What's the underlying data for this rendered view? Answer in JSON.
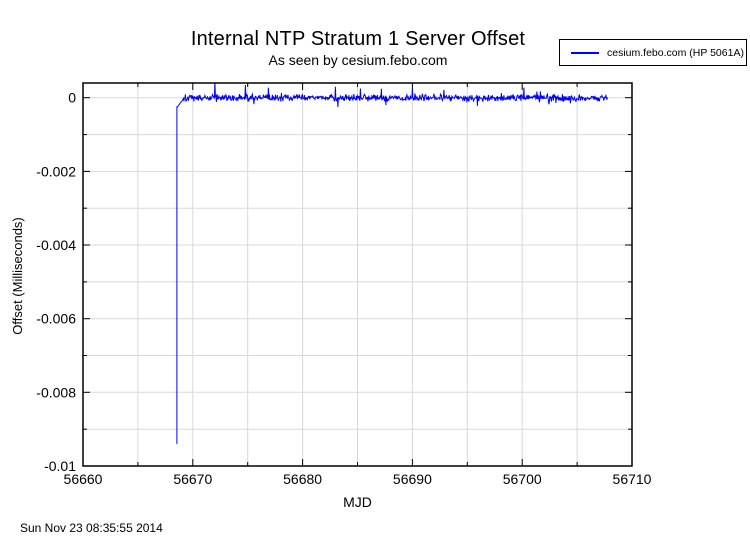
{
  "header": {
    "title": "Internal NTP Stratum 1 Server Offset",
    "subtitle": "As seen by cesium.febo.com"
  },
  "legend": {
    "entries": [
      {
        "label": "cesium.febo.com (HP 5061A)",
        "color": "#0000ff"
      }
    ]
  },
  "footer": {
    "timestamp": "Sun Nov 23 08:35:55 2014"
  },
  "colors": {
    "line": "#0000ff",
    "grid": "#d8d8d8",
    "border": "#000000",
    "text": "#000000"
  },
  "chart_data": {
    "type": "line",
    "title": "Internal NTP Stratum 1 Server Offset",
    "subtitle": "As seen by cesium.febo.com",
    "xlabel": "MJD",
    "ylabel": "Offset (Milliseconds)",
    "xlim": [
      56660,
      56710
    ],
    "ylim": [
      -0.01,
      0.0004
    ],
    "xtick_values": [
      56660,
      56670,
      56680,
      56690,
      56700,
      56710
    ],
    "xtick_labels": [
      "56660",
      "56670",
      "56680",
      "56690",
      "56700",
      "56710"
    ],
    "xtick_minor_step": 5,
    "ytick_values": [
      0,
      -0.002,
      -0.004,
      -0.006,
      -0.008,
      -0.01
    ],
    "ytick_labels": [
      "0",
      "-0.002",
      "-0.004",
      "-0.006",
      "-0.008",
      "-0.01"
    ],
    "ytick_minor_step": 0.001,
    "grid": true,
    "grid_step_x": 5,
    "grid_step_y": 0.001,
    "legend_position": "top-right-outside",
    "series": [
      {
        "name": "cesium.febo.com (HP 5061A)",
        "color": "#0000ff",
        "data_start_mjd": 56668.55,
        "data_end_mjd": 56707.8,
        "initial_offset_ms": -0.0094,
        "steady_state_ms": 0.0,
        "noise_band_ms": 0.00011,
        "occasional_spike_ms": 0.00025,
        "max_spike_ms": 0.00045,
        "key_points": [
          [
            56668.55,
            -0.0094
          ],
          [
            56668.65,
            -0.00025
          ],
          [
            56669.0,
            0.0
          ],
          [
            56672.0,
            0.0004
          ],
          [
            56680.0,
            0.0
          ],
          [
            56690.0,
            0.0
          ],
          [
            56700.0,
            0.0
          ],
          [
            56707.8,
            0.0
          ]
        ]
      }
    ],
    "annotations": {
      "timestamp": "Sun Nov 23 08:35:55 2014"
    }
  }
}
